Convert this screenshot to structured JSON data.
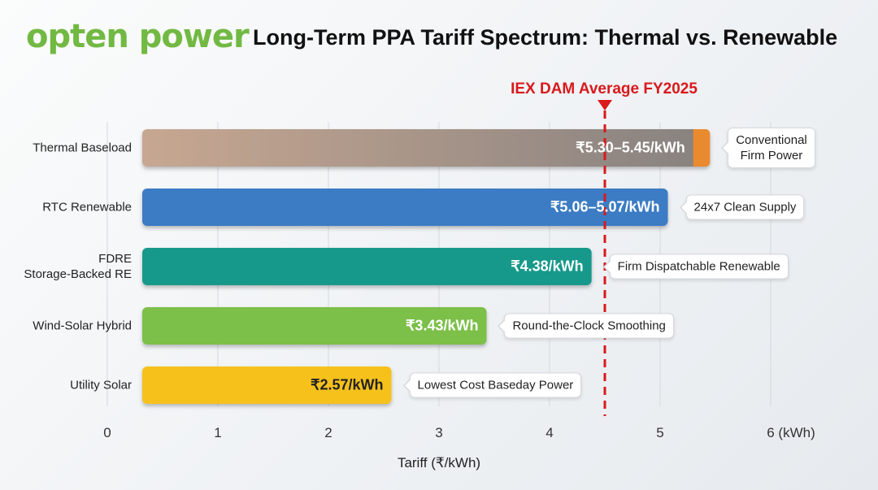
{
  "logo": "opten power",
  "chart_data": {
    "type": "bar",
    "orientation": "horizontal",
    "title": "Long-Term PPA Tariff Spectrum: Thermal vs. Renewable",
    "xlabel": "Tariff (₹/kWh)",
    "ylabel": "",
    "xlim": [
      0,
      6
    ],
    "xticks": [
      "0",
      "1",
      "2",
      "3",
      "4",
      "5",
      "6 (kWh)"
    ],
    "grid": true,
    "categories": [
      "Thermal Baseload",
      "RTC Renewable",
      "FDRE\nStorage-Backed RE",
      "Wind-Solar Hybrid",
      "Utility Solar"
    ],
    "bars": [
      {
        "category": "Thermal Baseload",
        "low": 5.3,
        "high": 5.45,
        "label": "₹5.30–5.45/kWh",
        "annotation": "Conventional\nFirm Power",
        "color": "#9a8c83",
        "accent": "#ea8a2e",
        "label_color": "#ffffff"
      },
      {
        "category": "RTC Renewable",
        "low": 5.06,
        "high": 5.07,
        "label": "₹5.06–5.07/kWh",
        "annotation": "24x7 Clean Supply",
        "color": "#3a7cc4",
        "label_color": "#ffffff"
      },
      {
        "category": "FDRE Storage-Backed RE",
        "low": 4.38,
        "high": 4.38,
        "label": "₹4.38/kWh",
        "annotation": "Firm Dispatchable Renewable",
        "color": "#17998a",
        "label_color": "#ffffff"
      },
      {
        "category": "Wind-Solar Hybrid",
        "low": 3.43,
        "high": 3.43,
        "label": "₹3.43/kWh",
        "annotation": "Round-the-Clock Smoothing",
        "color": "#7cbf48",
        "label_color": "#ffffff"
      },
      {
        "category": "Utility Solar",
        "low": 2.57,
        "high": 2.57,
        "label": "₹2.57/kWh",
        "annotation": "Lowest Cost Baseday Power",
        "color": "#f7c11c",
        "label_color": "#222222"
      }
    ],
    "reference_line": {
      "value": 4.5,
      "label": "IEX DAM Average FY2025",
      "color": "#d9191c"
    }
  }
}
